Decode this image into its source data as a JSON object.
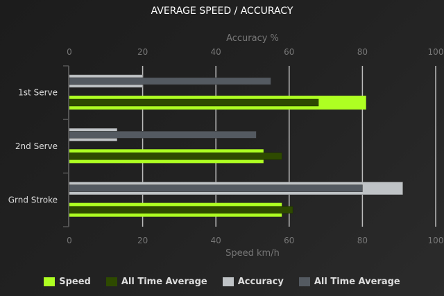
{
  "chart_data": {
    "type": "bar",
    "orientation": "horizontal",
    "title": "AVERAGE SPEED / ACCURACY",
    "categories": [
      "1st Serve",
      "2nd Serve",
      "Grnd Stroke"
    ],
    "top_axis": {
      "label": "Accuracy %",
      "range": [
        0,
        100
      ],
      "ticks": [
        "0",
        "20",
        "40",
        "60",
        "80",
        "100"
      ]
    },
    "bottom_axis": {
      "label": "Speed km/h",
      "range": [
        0,
        100
      ],
      "ticks": [
        "0",
        "20",
        "40",
        "60",
        "80",
        "100"
      ]
    },
    "grid": true,
    "legend_position": "bottom",
    "series": [
      {
        "name": "Speed",
        "axis": "bottom",
        "color": "#aeff22",
        "values": [
          81,
          53,
          58
        ]
      },
      {
        "name": "All Time Average",
        "axis": "bottom",
        "color": "#2e4a00",
        "values": [
          68,
          58,
          61
        ]
      },
      {
        "name": "Accuracy",
        "axis": "top",
        "color": "#bfc3c6",
        "values": [
          20,
          13,
          91
        ]
      },
      {
        "name": "All Time Average",
        "axis": "top",
        "color": "#545a61",
        "values": [
          55,
          51,
          80
        ]
      }
    ]
  }
}
